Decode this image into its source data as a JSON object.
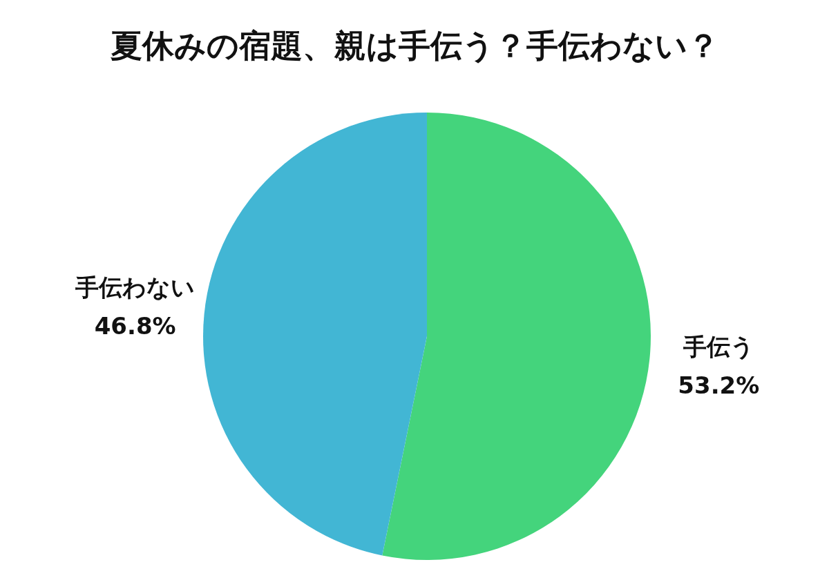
{
  "chart_data": {
    "type": "pie",
    "title": "夏休みの宿題、親は手伝う？手伝わない？",
    "categories": [
      "手伝う",
      "手伝わない"
    ],
    "values": [
      53.2,
      46.8
    ],
    "colors": [
      "#44d47c",
      "#42b6d4"
    ],
    "value_labels": [
      "53.2%",
      "46.8%"
    ]
  }
}
